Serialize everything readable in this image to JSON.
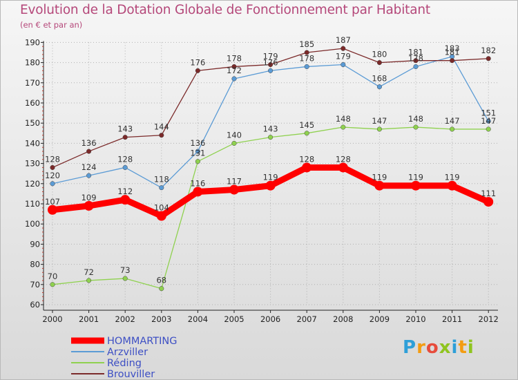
{
  "chart_data": {
    "type": "line",
    "title": "Evolution de la Dotation Globale de Fonctionnement par Habitant",
    "subtitle": "(en € et par an)",
    "categories": [
      "2000",
      "2001",
      "2002",
      "2003",
      "2004",
      "2005",
      "2006",
      "2007",
      "2008",
      "2009",
      "2010",
      "2011",
      "2012"
    ],
    "y_ticks": [
      "60",
      "70",
      "80",
      "90",
      "100",
      "110",
      "120",
      "130",
      "140",
      "150",
      "160",
      "170",
      "180",
      "190"
    ],
    "ylim": [
      60,
      190
    ],
    "series": [
      {
        "name": "HOMMARTING",
        "color": "#ff0000",
        "values": [
          107,
          109,
          112,
          104,
          116,
          117,
          119,
          128,
          128,
          119,
          119,
          119,
          111
        ],
        "labels": [
          "107",
          "109",
          "112",
          "104",
          "116",
          "117",
          "119",
          "128",
          "128",
          "119",
          "119",
          "119",
          "111"
        ]
      },
      {
        "name": "Arzviller",
        "color": "#5b9bd5",
        "values": [
          120,
          124,
          128,
          118,
          136,
          172,
          176,
          178,
          179,
          168,
          178,
          183,
          151
        ],
        "labels": [
          "120",
          "124",
          "128",
          "118",
          "136",
          "172",
          "176",
          "178",
          "179",
          "168",
          "178",
          "183",
          "151"
        ]
      },
      {
        "name": "Réding",
        "color": "#8fd14f",
        "values": [
          70,
          72,
          73,
          68,
          131,
          140,
          143,
          145,
          148,
          147,
          148,
          147,
          147
        ],
        "labels": [
          "70",
          "72",
          "73",
          "68",
          "131",
          "140",
          "143",
          "145",
          "148",
          "147",
          "148",
          "147",
          "147"
        ]
      },
      {
        "name": "Brouviller",
        "color": "#7b2a2a",
        "values": [
          128,
          136,
          143,
          144,
          176,
          178,
          179,
          185,
          187,
          180,
          181,
          181,
          182
        ],
        "labels": [
          "128",
          "136",
          "143",
          "144",
          "176",
          "178",
          "179",
          "185",
          "187",
          "180",
          "181",
          "181",
          "182"
        ]
      }
    ]
  },
  "logo": {
    "letters": [
      "P",
      "r",
      "o",
      "x",
      "i",
      "t",
      "i"
    ],
    "colors": [
      "#2e9fd8",
      "#f39c12",
      "#e74c3c",
      "#8fc41f",
      "#2e9fd8",
      "#f39c12",
      "#8fc41f"
    ]
  }
}
